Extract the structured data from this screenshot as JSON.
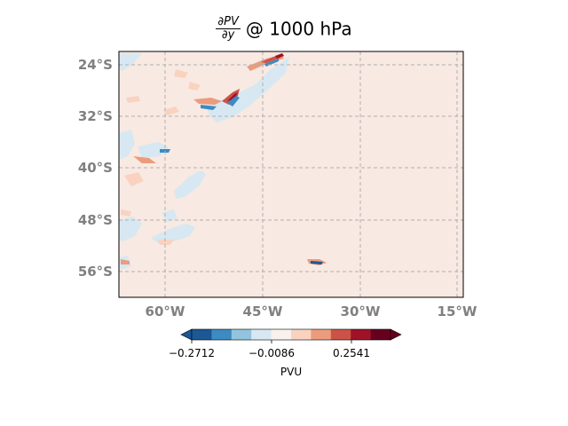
{
  "title": {
    "numerator": "∂PV",
    "denominator": "∂y",
    "rest": "@ 1000 hPa"
  },
  "map": {
    "lat_labels": [
      "24°S",
      "32°S",
      "40°S",
      "48°S",
      "56°S"
    ],
    "lon_labels": [
      "60°W",
      "45°W",
      "30°W",
      "15°W"
    ],
    "background_color": "#f8e9e2",
    "gridline_style": "dashed grey"
  },
  "colorbar": {
    "colors": [
      "#1c5796",
      "#3c8bc2",
      "#93c4df",
      "#d7e8f2",
      "#f8f1ee",
      "#f9d3c0",
      "#eb9c7c",
      "#cc5247",
      "#a01228",
      "#67001f"
    ],
    "tick_labels": [
      "−0.2712",
      "−0.0086",
      "0.2541"
    ],
    "label": "PVU"
  }
}
